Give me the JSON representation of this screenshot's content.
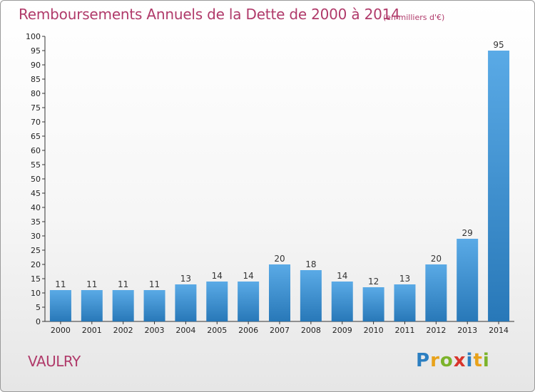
{
  "title": "Remboursements Annuels de la Dette de 2000 à 2014",
  "subtitle": "(en milliers d'€)",
  "commune": "VAULRY",
  "logo": {
    "text": "Proxiti",
    "letters": [
      {
        "ch": "P",
        "color": "#2c7fc1"
      },
      {
        "ch": "r",
        "color": "#e8a21b"
      },
      {
        "ch": "o",
        "color": "#7cb32b"
      },
      {
        "ch": "x",
        "color": "#d8352c"
      },
      {
        "ch": "i",
        "color": "#2c7fc1"
      },
      {
        "ch": "t",
        "color": "#e8a21b"
      },
      {
        "ch": "i",
        "color": "#7cb32b"
      }
    ]
  },
  "colors": {
    "text_accent": "#b03a6a",
    "bar_light": "#5aaae6",
    "bar_dark": "#2878b8"
  },
  "chart_data": {
    "type": "bar",
    "title": "Remboursements Annuels de la Dette de 2000 à 2014",
    "subtitle": "(en milliers d'€)",
    "xlabel": "",
    "ylabel": "",
    "ylim": [
      0,
      100
    ],
    "ytick_step": 5,
    "grid": false,
    "categories": [
      "2000",
      "2001",
      "2002",
      "2003",
      "2004",
      "2005",
      "2006",
      "2007",
      "2008",
      "2009",
      "2010",
      "2011",
      "2012",
      "2013",
      "2014"
    ],
    "values": [
      11,
      11,
      11,
      11,
      13,
      14,
      14,
      20,
      18,
      14,
      12,
      13,
      20,
      29,
      95
    ]
  }
}
